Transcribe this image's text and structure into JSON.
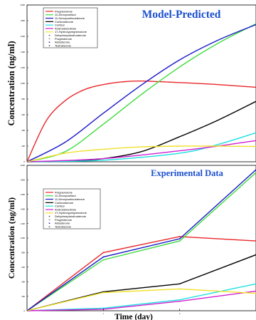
{
  "chart_data": [
    {
      "type": "line",
      "title": "Model-Predicted",
      "title_color": "#1a4fcf",
      "ylabel": "Concentration (ng/ml)",
      "xlabel": "",
      "xlim": [
        0,
        3
      ],
      "ylim": [
        0,
        2000
      ],
      "yticks": [
        0,
        200,
        400,
        600,
        800,
        1000,
        1200,
        1400,
        1600,
        1800,
        2000
      ],
      "legend_position": "top-left",
      "grid": false,
      "legend": [
        {
          "name": "Pregnenolone",
          "color": "#e8262a",
          "marker": "line"
        },
        {
          "name": "11-Deoxycortisol",
          "color": "#3ddc3d",
          "marker": "line"
        },
        {
          "name": "11-Deoxycorticosterone",
          "color": "#1a1ac8",
          "marker": "line"
        },
        {
          "name": "Corticosterone",
          "color": "#000000",
          "marker": "line"
        },
        {
          "name": "Cortisol",
          "color": "#19e0e0",
          "marker": "line"
        },
        {
          "name": "Androstenedione",
          "color": "#d21fd2",
          "marker": "line"
        },
        {
          "name": "17-Hydroxypregnenolone",
          "color": "#f0e02a",
          "marker": "line"
        },
        {
          "name": "Dehydroepiandrosterone",
          "color": "#555555",
          "marker": "dot"
        },
        {
          "name": "Progesterone",
          "color": "#888888",
          "marker": "dot"
        },
        {
          "name": "Aldosterone",
          "color": "#1a1ac8",
          "marker": "dot"
        },
        {
          "name": "Testosterone",
          "color": "#555555",
          "marker": "dot"
        }
      ],
      "series": [
        {
          "name": "Pregnenolone",
          "color": "#e8262a",
          "x": [
            0,
            0.25,
            0.5,
            0.75,
            1.0,
            1.25,
            1.5,
            2.0,
            2.5,
            3.0
          ],
          "y": [
            0,
            520,
            780,
            920,
            985,
            1020,
            1030,
            1010,
            985,
            950
          ]
        },
        {
          "name": "11-Deoxycortisol",
          "color": "#3ddc3d",
          "x": [
            0,
            0.5,
            1.0,
            1.5,
            2.0,
            2.5,
            3.0
          ],
          "y": [
            0,
            130,
            480,
            860,
            1210,
            1510,
            1760
          ]
        },
        {
          "name": "11-Deoxycorticosterone",
          "color": "#1a1ac8",
          "x": [
            0,
            0.5,
            1.0,
            1.5,
            2.0,
            2.5,
            3.0
          ],
          "y": [
            0,
            250,
            620,
            980,
            1300,
            1550,
            1750
          ]
        },
        {
          "name": "Corticosterone",
          "color": "#000000",
          "x": [
            0,
            0.5,
            1.0,
            1.5,
            2.0,
            2.5,
            3.0
          ],
          "y": [
            0,
            5,
            40,
            130,
            320,
            530,
            770
          ]
        },
        {
          "name": "Cortisol",
          "color": "#19e0e0",
          "x": [
            0,
            1.0,
            2.0,
            2.5,
            3.0
          ],
          "y": [
            0,
            20,
            110,
            220,
            370
          ]
        },
        {
          "name": "Androstenedione",
          "color": "#d21fd2",
          "x": [
            0,
            1.0,
            2.0,
            2.5,
            3.0
          ],
          "y": [
            0,
            40,
            140,
            200,
            270
          ]
        },
        {
          "name": "17-Hydroxypregnenolone",
          "color": "#f0e02a",
          "x": [
            0,
            0.5,
            1.0,
            1.5,
            2.0,
            2.5,
            3.0
          ],
          "y": [
            0,
            110,
            160,
            190,
            200,
            200,
            195
          ]
        }
      ]
    },
    {
      "type": "line",
      "title": "Experimental Data",
      "title_color": "#1a4fcf",
      "ylabel": "Concentration (ng/ml)",
      "xlabel": "Time (day)",
      "xlim": [
        0,
        3
      ],
      "ylim": [
        0,
        2000
      ],
      "xticks": [
        1,
        2
      ],
      "yticks": [
        0,
        200,
        400,
        600,
        800,
        1000,
        1200,
        1400,
        1600,
        1800,
        2000
      ],
      "legend_position": "top-left",
      "grid": false,
      "legend": [
        {
          "name": "Pregnenolone",
          "color": "#e8262a",
          "marker": "line"
        },
        {
          "name": "11-Deoxycortisol",
          "color": "#3ddc3d",
          "marker": "line"
        },
        {
          "name": "11-Deoxycorticosterone",
          "color": "#1a1ac8",
          "marker": "line"
        },
        {
          "name": "Corticosterone",
          "color": "#000000",
          "marker": "line"
        },
        {
          "name": "Cortisol",
          "color": "#19e0e0",
          "marker": "line"
        },
        {
          "name": "Androstenedione",
          "color": "#d21fd2",
          "marker": "line"
        },
        {
          "name": "17-Hydroxypregnenolone",
          "color": "#f0e02a",
          "marker": "line"
        },
        {
          "name": "Dehydroepiandrosterone",
          "color": "#555555",
          "marker": "dot"
        },
        {
          "name": "Progesterone",
          "color": "#888888",
          "marker": "dot"
        },
        {
          "name": "Aldosterone",
          "color": "#1a1ac8",
          "marker": "dot"
        },
        {
          "name": "Testosterone",
          "color": "#555555",
          "marker": "dot"
        }
      ],
      "series": [
        {
          "name": "Pregnenolone",
          "color": "#e8262a",
          "x": [
            0,
            1,
            2,
            3
          ],
          "y": [
            0,
            800,
            1020,
            960
          ]
        },
        {
          "name": "11-Deoxycortisol",
          "color": "#3ddc3d",
          "x": [
            0,
            1,
            2,
            3
          ],
          "y": [
            0,
            700,
            960,
            1900
          ]
        },
        {
          "name": "11-Deoxycorticosterone",
          "color": "#1a1ac8",
          "x": [
            0,
            1,
            2,
            3
          ],
          "y": [
            0,
            740,
            990,
            1940
          ]
        },
        {
          "name": "Corticosterone",
          "color": "#000000",
          "x": [
            0,
            1,
            2,
            3
          ],
          "y": [
            0,
            260,
            370,
            770
          ]
        },
        {
          "name": "Cortisol",
          "color": "#19e0e0",
          "x": [
            0,
            1,
            2,
            3
          ],
          "y": [
            0,
            35,
            150,
            370
          ]
        },
        {
          "name": "Androstenedione",
          "color": "#d21fd2",
          "x": [
            0,
            1,
            2,
            3
          ],
          "y": [
            0,
            20,
            130,
            270
          ]
        },
        {
          "name": "17-Hydroxypregnenolone",
          "color": "#f0e02a",
          "x": [
            0,
            1,
            2,
            3
          ],
          "y": [
            0,
            250,
            300,
            240
          ]
        }
      ]
    }
  ]
}
